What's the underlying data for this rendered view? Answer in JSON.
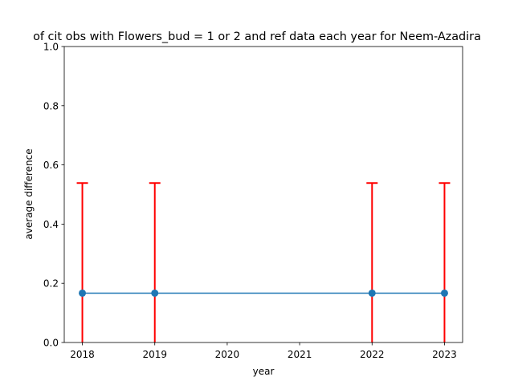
{
  "chart_data": {
    "type": "line",
    "title": "of cit obs with Flowers_bud = 1 or 2 and ref data each year for Neem-Azadira",
    "xlabel": "year",
    "ylabel": "average difference",
    "x": [
      2018,
      2019,
      2022,
      2023
    ],
    "xticks": [
      2018,
      2019,
      2020,
      2021,
      2022,
      2023
    ],
    "yticks": [
      0.0,
      0.2,
      0.4,
      0.6,
      0.8,
      1.0
    ],
    "xlim": [
      2017.75,
      2023.25
    ],
    "ylim": [
      0.0,
      1.0
    ],
    "series": [
      {
        "values": [
          0.1667,
          0.1667,
          0.1667,
          0.1667
        ],
        "error": [
          0.372,
          0.372,
          0.372,
          0.372
        ],
        "color": "#1f77b4",
        "error_color": "#ff0000",
        "marker": "circle"
      }
    ],
    "grid": false
  }
}
